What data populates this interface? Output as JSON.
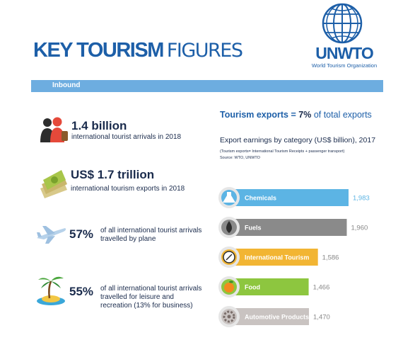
{
  "header": {
    "title_bold": "KEY TOURISM",
    "title_light": "FIGURES"
  },
  "logo": {
    "name": "UNWTO",
    "subtitle": "World Tourism Organization"
  },
  "section": {
    "label": "Inbound"
  },
  "stats": [
    {
      "big": "1.4 billion",
      "text": "international tourist arrivals in 2018",
      "icon": "tourists-icon"
    },
    {
      "big": "US$ 1.7 trillion",
      "text": "international tourism exports in 2018",
      "icon": "money-icon"
    },
    {
      "big": "57%",
      "text": "of all international tourist arrivals travelled by plane",
      "icon": "plane-icon"
    },
    {
      "big": "55%",
      "text": "of all international tourist arrivals travelled for leisure and recreation (13% for business)",
      "icon": "island-icon"
    }
  ],
  "exports": {
    "prefix": "Tourism exports = ",
    "pct": "7%",
    "suffix": " of total exports"
  },
  "chart_title": "Export earnings by category (US$ billion), 2017",
  "chart_note_1": "(Tourism exports= International Tourism Receipts + passenger transport)",
  "chart_note_2": "Source: WTO, UNWTO",
  "colors": {
    "brand_blue": "#1d5fa8",
    "band_blue": "#6dade0"
  },
  "chart_data": {
    "type": "bar",
    "orientation": "horizontal",
    "categories": [
      "Chemicals",
      "Fuels",
      "International Tourism",
      "Food",
      "Automotive Products"
    ],
    "values": [
      1983,
      1960,
      1586,
      1466,
      1470
    ],
    "value_labels": [
      "1,983",
      "1,960",
      "1,586",
      "1,466",
      "1,470"
    ],
    "colors": [
      "#5cb4e4",
      "#8a8a8a",
      "#f2b533",
      "#8dc63f",
      "#c9c3c1"
    ],
    "icons": [
      "flask-icon",
      "oil-drop-icon",
      "compass-icon",
      "orange-icon",
      "gear-icon"
    ]
  }
}
